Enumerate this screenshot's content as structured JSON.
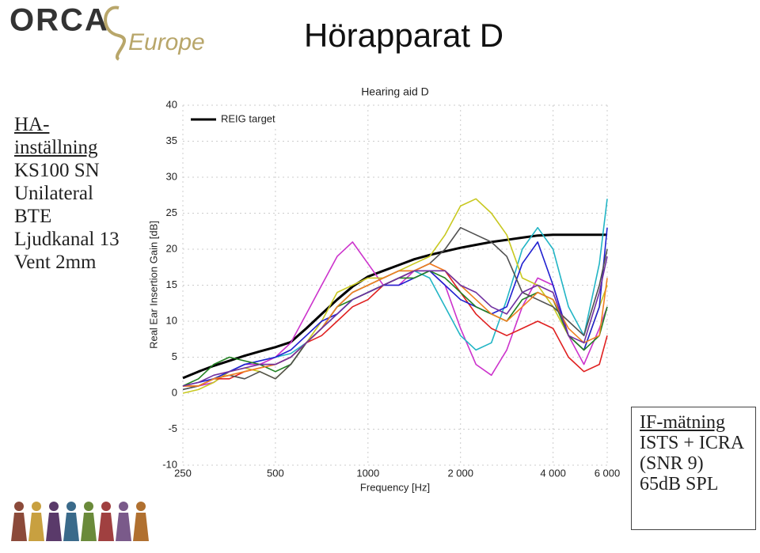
{
  "header": {
    "logo_text": "ORCA",
    "logo_subtext": "Europe",
    "title": "Hörapparat D"
  },
  "left_box": {
    "heading": "HA-inställning",
    "lines": [
      "KS100 SN",
      "Unilateral",
      "BTE",
      "Ljudkanal 13",
      "Vent 2mm"
    ]
  },
  "right_box": {
    "heading": "IF-mätning",
    "lines": [
      "ISTS + ICRA",
      "(SNR 9)",
      "65dB SPL"
    ]
  },
  "chart_data": {
    "type": "line",
    "title": "Hearing aid D",
    "x_label": "Frequency [Hz]",
    "y_label": "Real Ear Insertion Gain [dB]",
    "x_scale": "log",
    "grid": true,
    "legend": "upper left",
    "x": [
      250,
      281,
      315,
      354,
      397,
      445,
      500,
      561,
      630,
      707,
      794,
      891,
      1000,
      1122,
      1260,
      1414,
      1587,
      1782,
      2000,
      2245,
      2520,
      2828,
      3175,
      3564,
      4000,
      4490,
      5040,
      5657,
      6000
    ],
    "xlim": [
      250,
      6000
    ],
    "xticks": [
      250,
      500,
      1000,
      {
        "value": 2000,
        "label": "2 000"
      },
      {
        "value": 4000,
        "label": "4 000"
      },
      {
        "value": 6000,
        "label": "6 000"
      }
    ],
    "ylim": [
      -10,
      40
    ],
    "yticks": [
      -10,
      -5,
      0,
      5,
      10,
      15,
      20,
      25,
      30,
      35,
      40
    ],
    "series": [
      {
        "name": "REIG target",
        "color": "#000000",
        "values": [
          2.1,
          3,
          3.8,
          4.5,
          5.2,
          5.8,
          6.4,
          7.1,
          9,
          11,
          13,
          14.8,
          16.2,
          17,
          17.8,
          18.6,
          19.2,
          19.7,
          20.2,
          20.6,
          21,
          21.3,
          21.6,
          21.9,
          22,
          22,
          22,
          22,
          22
        ]
      },
      {
        "color": "#cc33cc",
        "values": [
          0.5,
          1,
          1.5,
          3,
          4,
          4,
          5,
          7,
          11,
          15,
          19,
          21,
          18,
          15,
          15,
          17,
          17,
          15,
          9,
          4,
          2.5,
          6,
          12,
          16,
          15,
          8,
          4,
          9,
          12
        ]
      },
      {
        "color": "#22b5c5",
        "values": [
          0.5,
          1,
          2,
          3,
          4,
          4.5,
          5,
          5.5,
          7,
          9,
          11,
          13,
          14,
          15,
          16,
          17,
          16,
          12,
          8,
          6,
          7,
          13,
          20,
          23,
          20,
          12,
          8,
          18,
          27
        ]
      },
      {
        "color": "#c8c820",
        "values": [
          0,
          0.5,
          1.5,
          3,
          3.5,
          3,
          2,
          4,
          7,
          10,
          14,
          15,
          16,
          16,
          17,
          18,
          19,
          22,
          26,
          27,
          25,
          22,
          16,
          15,
          12,
          8,
          6,
          12,
          15
        ]
      },
      {
        "color": "#e02020",
        "values": [
          1,
          1,
          2,
          2,
          3,
          3.5,
          4,
          5,
          7,
          8,
          10,
          12,
          13,
          15,
          16,
          17,
          18,
          17,
          14,
          11,
          9,
          8,
          9,
          10,
          9,
          5,
          3,
          4,
          8
        ]
      },
      {
        "color": "#2020d0",
        "values": [
          1,
          1.5,
          2,
          3,
          4,
          4.5,
          5,
          6,
          8,
          10,
          11,
          13,
          14,
          15,
          15,
          16,
          17,
          15,
          13,
          12,
          11,
          12,
          18,
          21,
          15,
          8,
          6,
          12,
          23
        ]
      },
      {
        "color": "#208020",
        "values": [
          1,
          2,
          4,
          5,
          4.5,
          4,
          3,
          4,
          7,
          9,
          12,
          13,
          14,
          15,
          16,
          16,
          17,
          16,
          14,
          12,
          11,
          10,
          13,
          14,
          13,
          8,
          6,
          8,
          12
        ]
      },
      {
        "color": "#505050",
        "values": [
          0.5,
          1,
          2,
          2.5,
          2,
          3,
          2,
          4,
          7,
          9,
          12,
          14,
          15,
          16,
          17,
          17,
          18,
          20,
          23,
          22,
          21,
          19,
          14,
          13,
          12,
          10,
          8,
          15,
          20
        ]
      },
      {
        "color": "#f08020",
        "values": [
          1,
          1,
          2,
          2.5,
          3,
          3.5,
          4,
          5,
          7,
          9,
          12,
          14,
          15,
          16,
          17,
          17,
          18,
          17,
          15,
          13,
          11,
          10,
          12,
          14,
          13,
          9,
          7,
          8,
          16
        ]
      },
      {
        "color": "#7030a0",
        "values": [
          1,
          1.5,
          2.5,
          3,
          3.5,
          4,
          4,
          5,
          7,
          9,
          11,
          13,
          14,
          15,
          16,
          17,
          17,
          17,
          15,
          14,
          12,
          11,
          14,
          15,
          14,
          8,
          7,
          14,
          19
        ]
      }
    ]
  }
}
